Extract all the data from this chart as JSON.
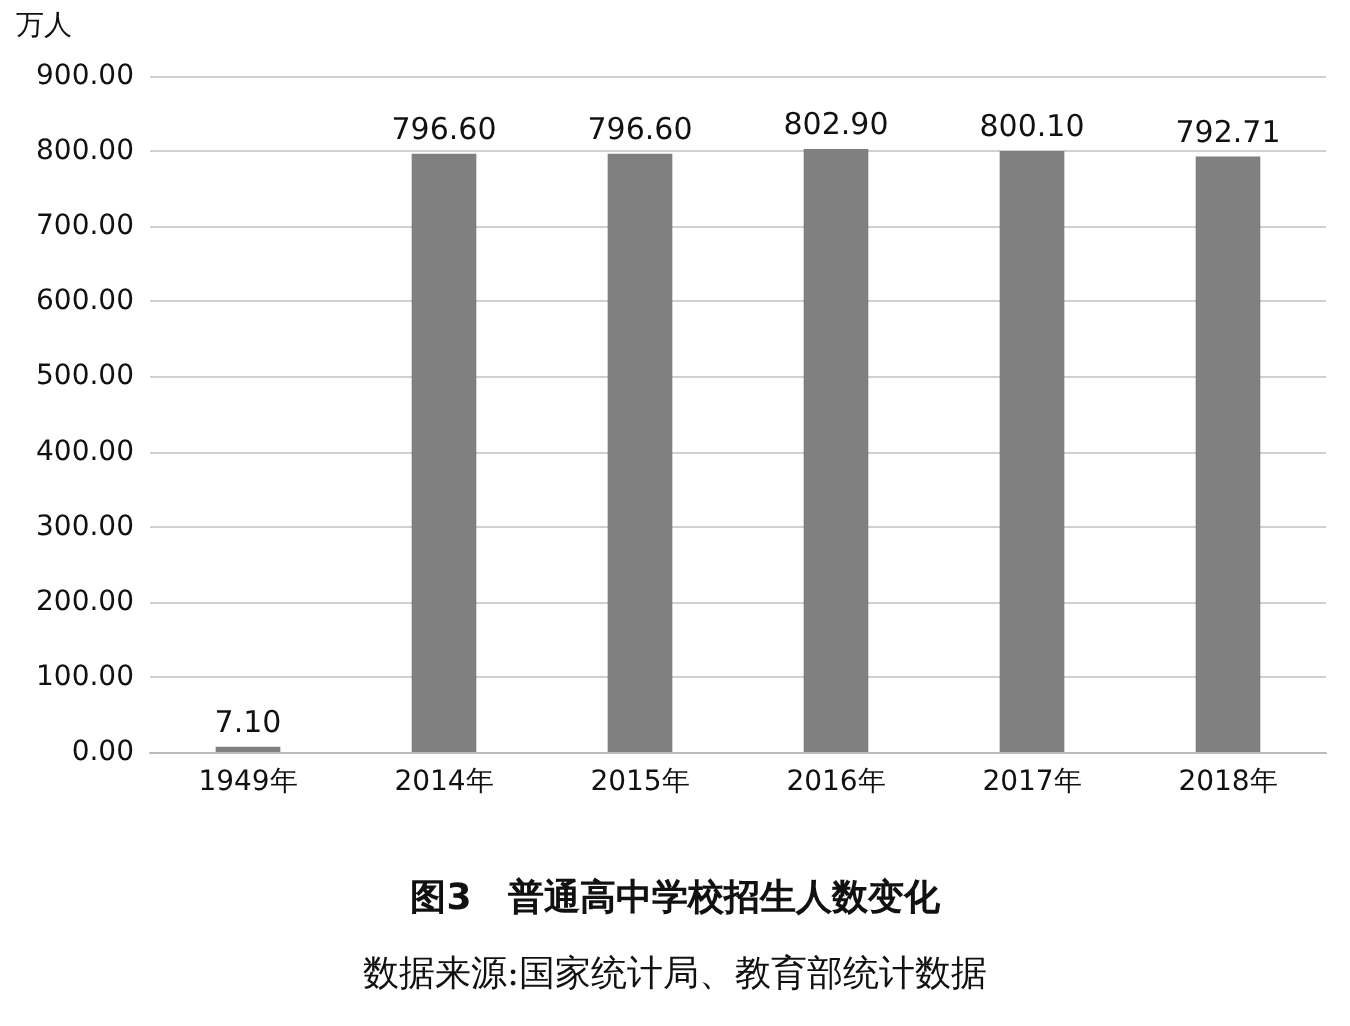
{
  "chart_data": {
    "type": "bar",
    "title": "图3　普通高中学校招生人数变化",
    "ylabel": "万人",
    "annotations": [
      "数据来源:国家统计局、教育部统计数据"
    ],
    "categories": [
      "1949年",
      "2014年",
      "2015年",
      "2016年",
      "2017年",
      "2018年"
    ],
    "values": [
      7.1,
      796.6,
      796.6,
      802.9,
      800.1,
      792.71
    ],
    "value_labels": [
      "7.10",
      "796.60",
      "796.60",
      "802.90",
      "800.10",
      "792.71"
    ],
    "color": "#808080",
    "ylim": [
      0,
      900
    ],
    "yticks": [
      {
        "value": 0,
        "label": "0.00"
      },
      {
        "value": 100,
        "label": "100.00"
      },
      {
        "value": 200,
        "label": "200.00"
      },
      {
        "value": 300,
        "label": "300.00"
      },
      {
        "value": 400,
        "label": "400.00"
      },
      {
        "value": 500,
        "label": "500.00"
      },
      {
        "value": 600,
        "label": "600.00"
      },
      {
        "value": 700,
        "label": "700.00"
      },
      {
        "value": 800,
        "label": "800.00"
      },
      {
        "value": 900,
        "label": "900.00"
      }
    ],
    "grid": true
  }
}
